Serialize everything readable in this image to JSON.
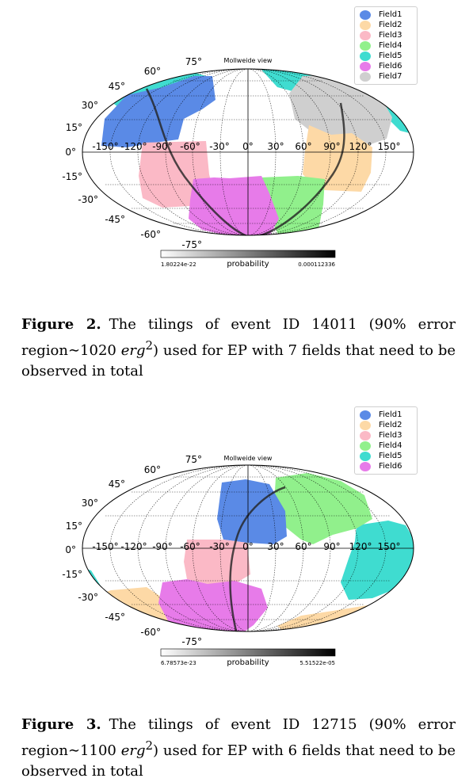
{
  "figures": [
    {
      "view_title": "Mollweide view",
      "legend": [
        {
          "label": "Field1",
          "color": "#5a8ae6"
        },
        {
          "label": "Field2",
          "color": "#fdd9a6"
        },
        {
          "label": "Field3",
          "color": "#fbb9c6"
        },
        {
          "label": "Field4",
          "color": "#91f08c"
        },
        {
          "label": "Field5",
          "color": "#3fdcd0"
        },
        {
          "label": "Field6",
          "color": "#e77be9"
        },
        {
          "label": "Field7",
          "color": "#cfcfcf"
        }
      ],
      "lon_labels": [
        "-150°",
        "-120°",
        "-90°",
        "-60°",
        "-30°",
        "0°",
        "30°",
        "60°",
        "90°",
        "120°",
        "150°"
      ],
      "lat_labels": [
        "75°",
        "60°",
        "45°",
        "30°",
        "15°",
        "0°",
        "-15°",
        "-30°",
        "-45°",
        "-60°",
        "-75°"
      ],
      "colorbar": {
        "min": "1.80224e-22",
        "max": "0.000112336",
        "label": "probability"
      },
      "caption": {
        "number": "Figure 2.",
        "text_before_unit": "The tilings of event ID 14011 (90% error region∼1020 ",
        "unit": "erg",
        "unit_power": "2",
        "text_after_unit": ") used for EP with 7 fields that need to be observed in total"
      }
    },
    {
      "view_title": "Mollweide view",
      "legend": [
        {
          "label": "Field1",
          "color": "#5a8ae6"
        },
        {
          "label": "Field2",
          "color": "#fdd9a6"
        },
        {
          "label": "Field3",
          "color": "#fbb9c6"
        },
        {
          "label": "Field4",
          "color": "#91f08c"
        },
        {
          "label": "Field5",
          "color": "#3fdcd0"
        },
        {
          "label": "Field6",
          "color": "#e77be9"
        }
      ],
      "lon_labels": [
        "-150°",
        "-120°",
        "-90°",
        "-60°",
        "-30°",
        "0°",
        "30°",
        "60°",
        "90°",
        "120°",
        "150°"
      ],
      "lat_labels": [
        "75°",
        "60°",
        "45°",
        "30°",
        "15°",
        "0°",
        "-15°",
        "-30°",
        "-45°",
        "-60°",
        "-75°"
      ],
      "colorbar": {
        "min": "6.78573e-23",
        "max": "5.51522e-05",
        "label": "probability"
      },
      "caption": {
        "number": "Figure 3.",
        "text_before_unit": "The tilings of event ID 12715 (90% error region∼1100 ",
        "unit": "erg",
        "unit_power": "2",
        "text_after_unit": ") used for EP with 6 fields that need to be observed in total"
      }
    }
  ]
}
